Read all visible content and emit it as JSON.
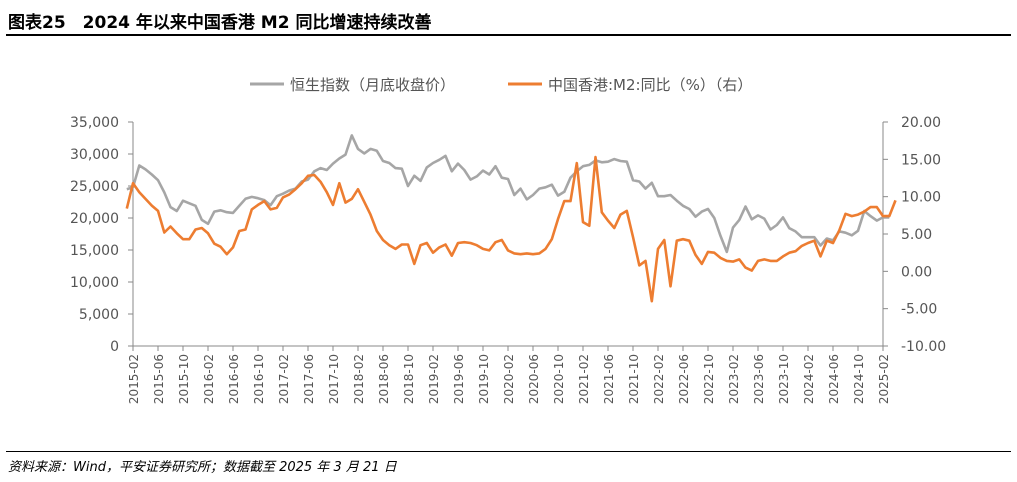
{
  "figure": {
    "title": "图表25　2024 年以来中国香港 M2 同比增速持续改善",
    "source": "资料来源：Wind，平安证券研究所；数据截至 2025 年 3 月 21 日"
  },
  "colors": {
    "left_series": "#A6A6A6",
    "right_series": "#ED7D31",
    "axis": "#888888"
  },
  "chart_data": {
    "type": "line",
    "legend_position": "top-center",
    "grid": false,
    "x_tick_labels": [
      "2015-02",
      "2015-06",
      "2015-10",
      "2016-02",
      "2016-06",
      "2016-10",
      "2017-02",
      "2017-06",
      "2017-10",
      "2018-02",
      "2018-06",
      "2018-10",
      "2019-02",
      "2019-06",
      "2019-10",
      "2020-02",
      "2020-06",
      "2020-10",
      "2021-02",
      "2021-06",
      "2021-10",
      "2022-02",
      "2022-06",
      "2022-10",
      "2023-02",
      "2023-06",
      "2023-10",
      "2024-02",
      "2024-06",
      "2024-10",
      "2025-02"
    ],
    "y_left": {
      "ylim": [
        0,
        35000
      ],
      "tick_labels": [
        "35,000",
        "30,000",
        "25,000",
        "20,000",
        "15,000",
        "10,000",
        "5,000",
        "0"
      ]
    },
    "y_right": {
      "ylim": [
        -10,
        20
      ],
      "tick_labels": [
        "20.00",
        "15.00",
        "10.00",
        "5.00",
        "0.00",
        "-5.00",
        "-10.00"
      ]
    },
    "series": [
      {
        "name": "恒生指数（月底收盘价）",
        "axis": "left",
        "start": "2015-01",
        "values": [
          24500,
          24800,
          28200,
          27600,
          26800,
          25900,
          24000,
          21700,
          21100,
          22700,
          22300,
          21900,
          19700,
          19100,
          21000,
          21200,
          20900,
          20800,
          21900,
          23000,
          23300,
          23100,
          22800,
          22000,
          23400,
          23800,
          24300,
          24600,
          25700,
          26000,
          27300,
          27800,
          27500,
          28500,
          29300,
          29900,
          32900,
          30800,
          30100,
          30800,
          30500,
          28900,
          28600,
          27800,
          27700,
          25000,
          26600,
          25800,
          27900,
          28600,
          29100,
          29700,
          27300,
          28500,
          27500,
          26000,
          26500,
          27400,
          26800,
          28100,
          26300,
          26100,
          23600,
          24600,
          22900,
          23600,
          24600,
          24800,
          25200,
          23500,
          24100,
          26300,
          27300,
          28100,
          28300,
          29000,
          28700,
          28800,
          29200,
          28900,
          28800,
          25900,
          25700,
          24600,
          25500,
          23400,
          23400,
          23600,
          22700,
          21900,
          21400,
          20200,
          21000,
          21400,
          20000,
          17200,
          14700,
          18500,
          19700,
          21800,
          19800,
          20400,
          19900,
          18200,
          18900,
          20100,
          18400,
          17900,
          17000,
          17000,
          17000,
          15700,
          16800,
          16500,
          17900,
          17700,
          17300,
          18000,
          21100,
          20300,
          19600,
          20100,
          20100
        ]
      },
      {
        "name": "中国香港:M2:同比（%）（右）",
        "axis": "right",
        "start": "2015-01",
        "values": [
          8.4,
          11.8,
          10.6,
          9.7,
          8.8,
          8.1,
          5.2,
          6.0,
          5.1,
          4.3,
          4.3,
          5.6,
          5.8,
          5.1,
          3.7,
          3.3,
          2.3,
          3.2,
          5.4,
          5.6,
          8.3,
          8.9,
          9.4,
          8.3,
          8.5,
          9.9,
          10.3,
          11.0,
          11.8,
          12.8,
          12.9,
          12.0,
          10.6,
          8.9,
          11.8,
          9.2,
          9.7,
          11.0,
          9.3,
          7.6,
          5.4,
          4.2,
          3.5,
          3.0,
          3.6,
          3.6,
          1.0,
          3.5,
          3.8,
          2.5,
          3.2,
          3.6,
          2.1,
          3.8,
          3.9,
          3.8,
          3.5,
          3.0,
          2.8,
          3.9,
          4.2,
          2.8,
          2.4,
          2.3,
          2.4,
          2.3,
          2.4,
          3.0,
          4.3,
          7.0,
          9.4,
          9.4,
          14.5,
          6.6,
          6.1,
          15.3,
          7.9,
          6.8,
          5.8,
          7.6,
          8.1,
          4.6,
          0.8,
          1.4,
          -4.0,
          3.0,
          4.2,
          -2.0,
          4.1,
          4.3,
          4.1,
          2.2,
          1.0,
          2.6,
          2.5,
          1.8,
          1.4,
          1.3,
          1.6,
          0.5,
          0.1,
          1.4,
          1.6,
          1.4,
          1.4,
          2.0,
          2.5,
          2.7,
          3.4,
          3.8,
          4.1,
          2.0,
          4.1,
          3.8,
          5.5,
          7.7,
          7.4,
          7.6,
          8.0,
          8.6,
          8.6,
          7.4,
          7.4,
          9.5
        ]
      }
    ]
  }
}
